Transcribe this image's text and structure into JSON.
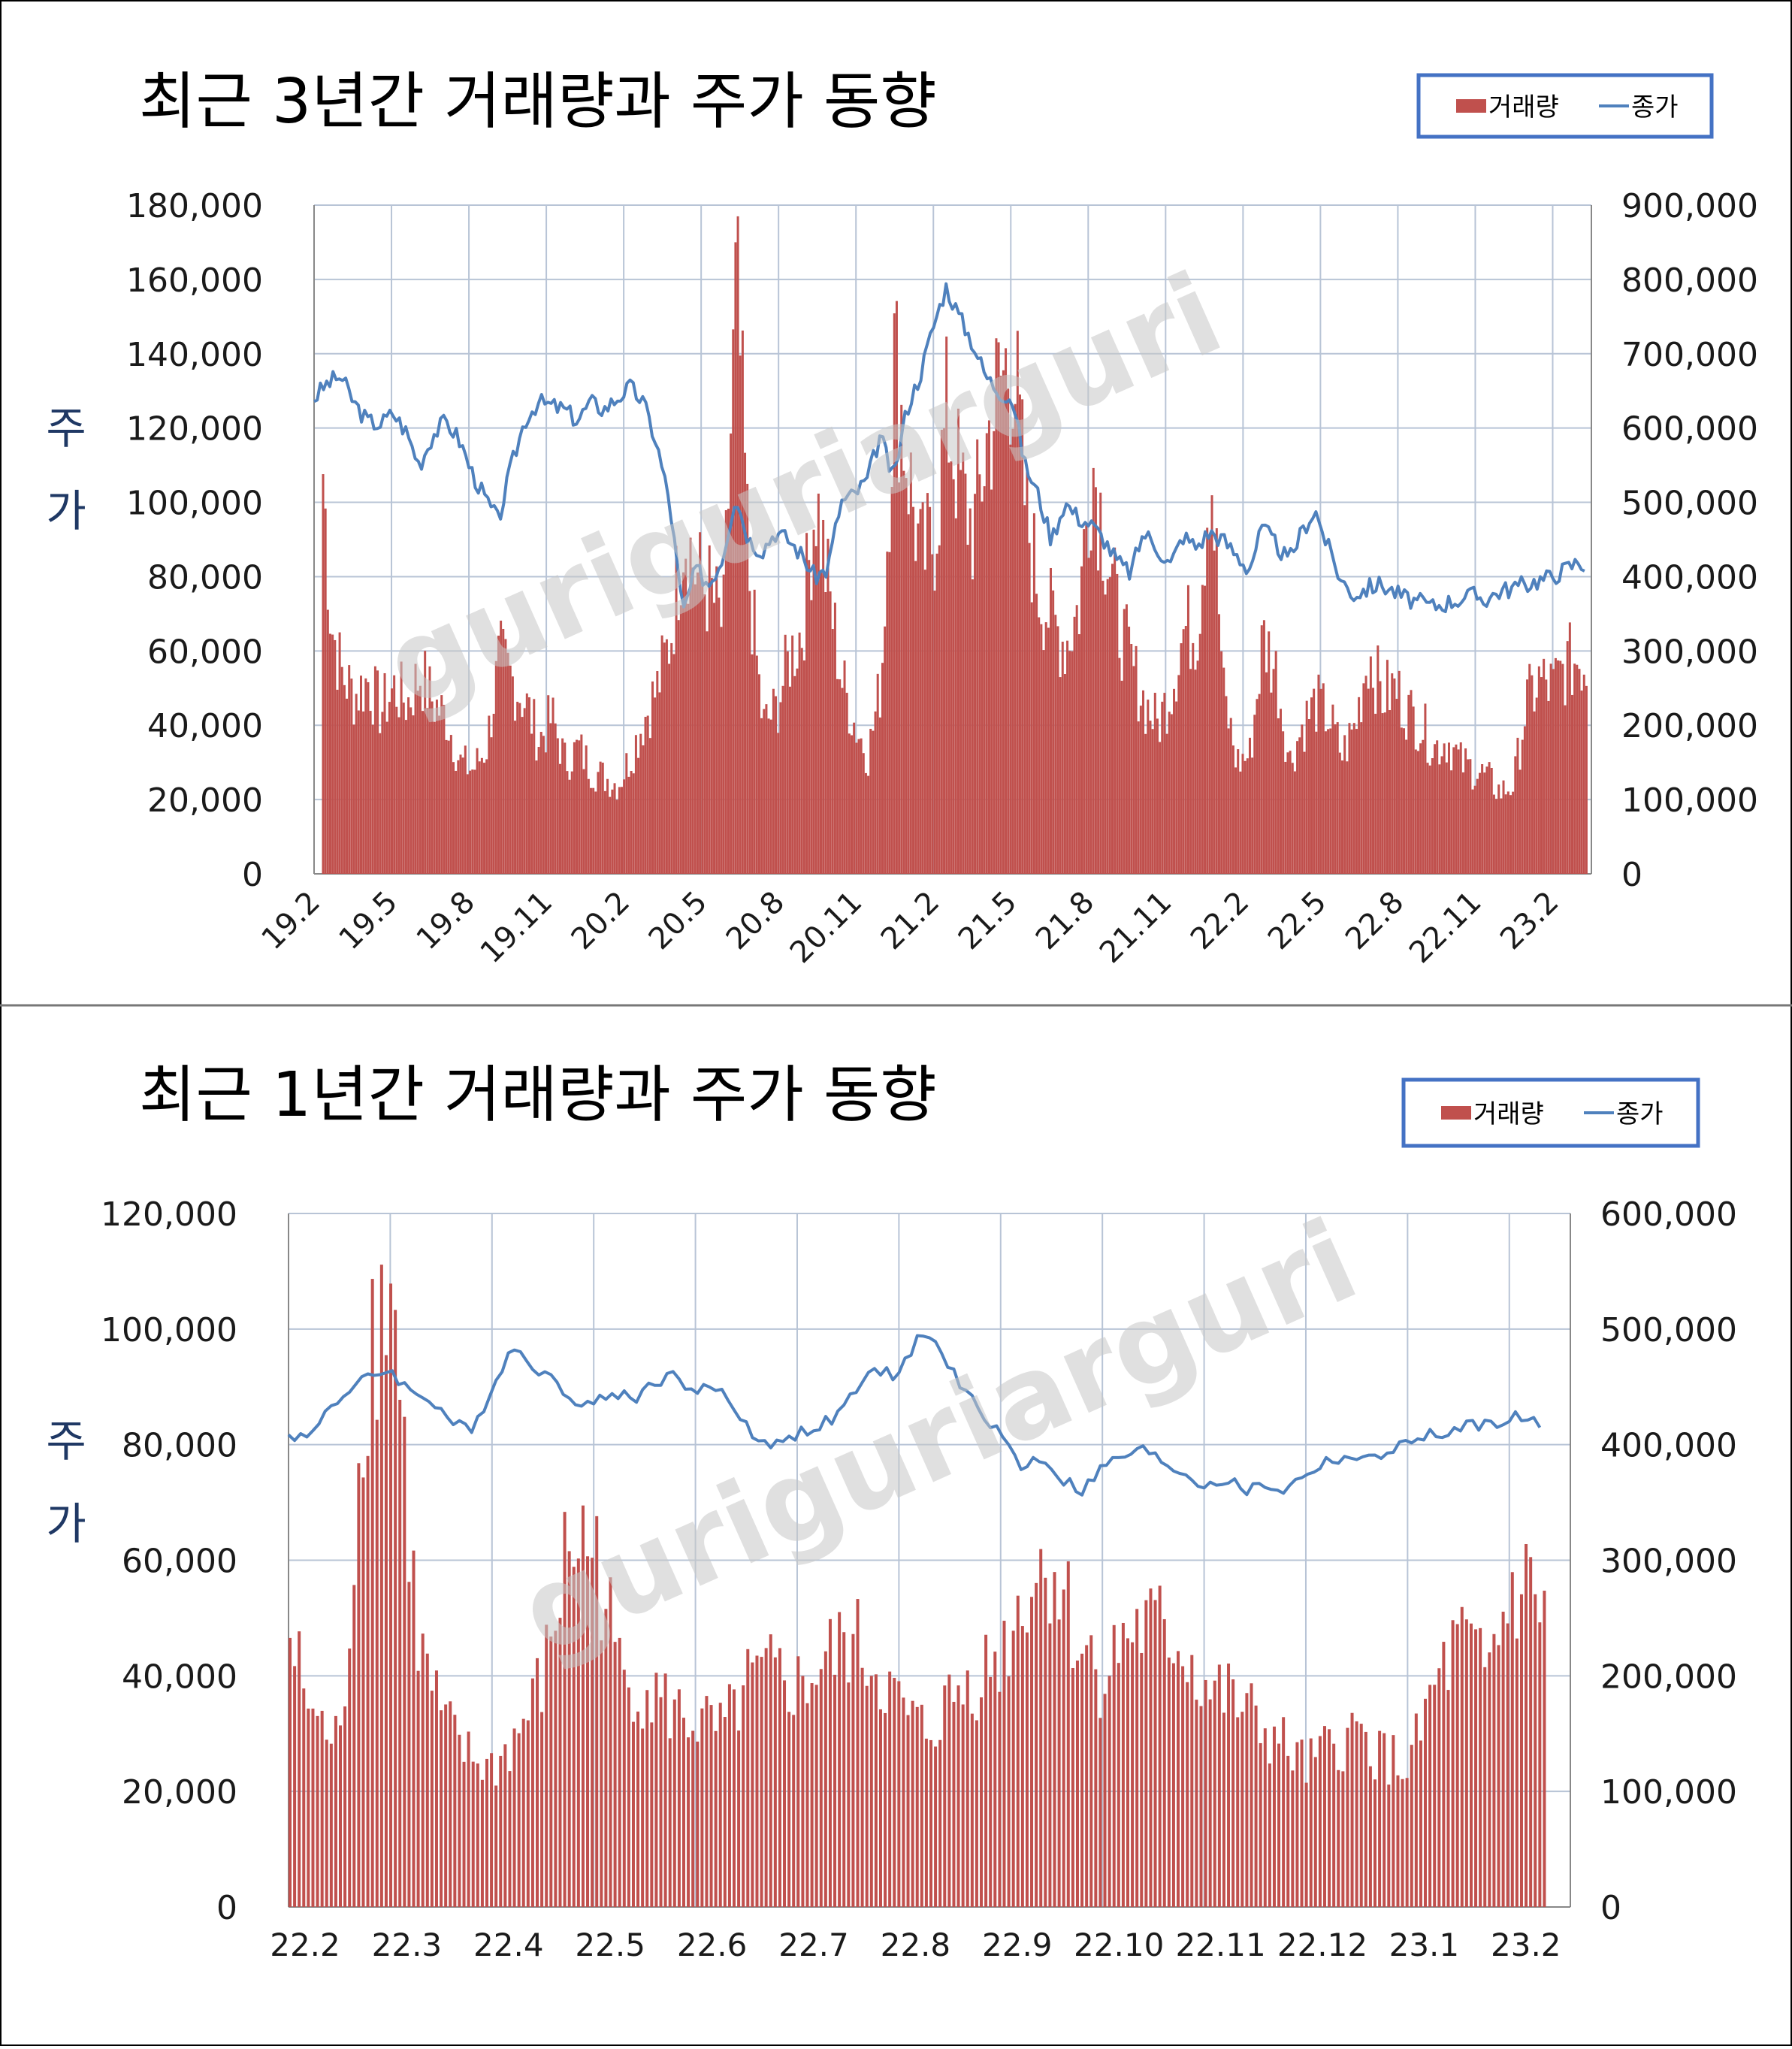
{
  "colors": {
    "volume": "#c0504d",
    "price": "#4f81bd",
    "grid": "#b8c4d6",
    "axis_text": "#1a1a1a",
    "ylabel": "#1f3864",
    "legend_border": "#4472c4",
    "watermark": "#c8c8c8",
    "frame": "#000000"
  },
  "watermark": "guriguriarguri",
  "chart_data": [
    {
      "type": "bar+line",
      "title": "최근 3년간 거래량과 주가 동향",
      "ylabel": "주\n가",
      "legend": {
        "position": "top-right",
        "items": [
          "거래량",
          "종가"
        ]
      },
      "x_ticks": [
        "19.2",
        "19.5",
        "19.8",
        "19.11",
        "20.2",
        "20.5",
        "20.8",
        "20.11",
        "21.2",
        "21.5",
        "21.8",
        "21.11",
        "22.2",
        "22.5",
        "22.8",
        "22.11",
        "23.2"
      ],
      "y_left": {
        "min": 0,
        "max": 180000,
        "step": 20000,
        "ticks": [
          "0",
          "20,000",
          "40,000",
          "60,000",
          "80,000",
          "100,000",
          "120,000",
          "140,000",
          "160,000",
          "180,000"
        ]
      },
      "y_right": {
        "min": 0,
        "max": 900000,
        "step": 100000,
        "ticks": [
          "0",
          "100,000",
          "200,000",
          "300,000",
          "400,000",
          "500,000",
          "600,000",
          "700,000",
          "800,000",
          "900,000"
        ]
      },
      "grid": true,
      "series": [
        {
          "name": "거래량",
          "axis": "right",
          "kind": "bar",
          "x_months": [
            0.3,
            0.6,
            1.0,
            1.5,
            2.0,
            2.5,
            3.0,
            3.5,
            4.0,
            4.5,
            5.0,
            5.5,
            6.0,
            6.5,
            7.0,
            7.5,
            8.0,
            8.5,
            9.0,
            9.5,
            10.0,
            10.5,
            11.0,
            11.5,
            12.0,
            12.5,
            13.0,
            13.5,
            14.0,
            14.5,
            15.0,
            15.5,
            16.0,
            16.5,
            17.0,
            17.5,
            18.0,
            18.5,
            19.0,
            19.5,
            20.0,
            20.5,
            21.0,
            21.5,
            22.0,
            22.5,
            23.0,
            23.5,
            24.0,
            24.5,
            25.0,
            25.5,
            26.0,
            26.5,
            27.0,
            27.5,
            28.0,
            28.5,
            29.0,
            29.5,
            30.0,
            30.5,
            31.0,
            31.5,
            32.0,
            32.5,
            33.0,
            33.5,
            34.0,
            34.5,
            35.0,
            35.5,
            36.0,
            36.5,
            37.0,
            37.5,
            38.0,
            38.5,
            39.0,
            39.5,
            40.0,
            40.5,
            41.0,
            41.5,
            42.0,
            42.5,
            43.0,
            43.5,
            44.0,
            44.5,
            45.0,
            45.5,
            46.0,
            46.5,
            47.0,
            47.5,
            48.0,
            48.3
          ],
          "values": [
            540000,
            340000,
            270000,
            240000,
            260000,
            220000,
            250000,
            230000,
            270000,
            230000,
            210000,
            150000,
            140000,
            170000,
            290000,
            260000,
            230000,
            180000,
            210000,
            150000,
            170000,
            140000,
            130000,
            120000,
            160000,
            210000,
            250000,
            320000,
            470000,
            400000,
            380000,
            330000,
            800000,
            390000,
            200000,
            220000,
            290000,
            330000,
            510000,
            380000,
            260000,
            200000,
            160000,
            260000,
            700000,
            550000,
            420000,
            450000,
            620000,
            520000,
            460000,
            580000,
            660000,
            700000,
            480000,
            380000,
            340000,
            310000,
            360000,
            560000,
            450000,
            340000,
            280000,
            230000,
            200000,
            250000,
            330000,
            330000,
            560000,
            240000,
            150000,
            160000,
            320000,
            270000,
            150000,
            200000,
            230000,
            210000,
            160000,
            200000,
            300000,
            240000,
            250000,
            220000,
            200000,
            170000,
            180000,
            150000,
            140000,
            130000,
            110000,
            120000,
            230000,
            260000,
            250000,
            280000,
            290000,
            280000
          ]
        },
        {
          "name": "종가",
          "axis": "left",
          "kind": "line",
          "x_months": [
            0,
            0.5,
            1,
            1.5,
            2,
            2.5,
            3,
            3.5,
            4,
            4.5,
            5,
            5.5,
            6,
            6.5,
            7,
            7.5,
            8,
            8.5,
            9,
            9.5,
            10,
            10.5,
            11,
            11.5,
            12,
            12.5,
            13,
            13.5,
            14,
            14.5,
            15,
            15.5,
            16,
            16.5,
            17,
            17.5,
            18,
            18.5,
            19,
            19.5,
            20,
            20.5,
            21,
            21.5,
            22,
            22.5,
            23,
            23.5,
            24,
            24.5,
            25,
            25.5,
            26,
            26.5,
            27,
            27.5,
            28,
            28.5,
            29,
            29.5,
            30,
            30.5,
            31,
            31.5,
            32,
            32.5,
            33,
            33.5,
            34,
            34.5,
            35,
            35.5,
            36,
            36.5,
            37,
            37.5,
            38,
            38.5,
            39,
            39.5,
            40,
            40.5,
            41,
            41.5,
            42,
            42.5,
            43,
            43.5,
            44,
            44.5,
            45,
            45.5,
            46,
            46.5,
            47,
            47.5,
            48,
            48.3
          ],
          "values": [
            128000,
            132000,
            134000,
            127000,
            122000,
            121000,
            124000,
            119000,
            110000,
            118000,
            122000,
            117000,
            108000,
            101000,
            95000,
            110000,
            122000,
            127000,
            126000,
            125000,
            122000,
            127000,
            125000,
            128000,
            131000,
            127000,
            116000,
            100000,
            70000,
            82000,
            78000,
            85000,
            102000,
            90000,
            87000,
            92000,
            90000,
            86000,
            80000,
            82000,
            100000,
            102000,
            106000,
            118000,
            106000,
            125000,
            134000,
            147000,
            158000,
            150000,
            143000,
            134000,
            130000,
            128000,
            110000,
            102000,
            90000,
            100000,
            96000,
            94000,
            90000,
            84000,
            81000,
            92000,
            88000,
            83000,
            91000,
            88000,
            92000,
            90000,
            86000,
            82000,
            93000,
            89000,
            84000,
            92000,
            98000,
            88000,
            79000,
            75000,
            77000,
            78000,
            76000,
            74000,
            73000,
            72000,
            73000,
            74000,
            75000,
            74000,
            76000,
            77000,
            78000,
            79000,
            80000,
            82000,
            84000,
            83000
          ]
        }
      ]
    },
    {
      "type": "bar+line",
      "title": "최근 1년간 거래량과 주가 동향",
      "ylabel": "주\n가",
      "legend": {
        "position": "top-right",
        "items": [
          "거래량",
          "종가"
        ]
      },
      "x_ticks": [
        "22.2",
        "22.3",
        "22.4",
        "22.5",
        "22.6",
        "22.7",
        "22.8",
        "22.9",
        "22.10",
        "22.11",
        "22.12",
        "23.1",
        "23.2"
      ],
      "y_left": {
        "min": 0,
        "max": 120000,
        "step": 20000,
        "ticks": [
          "0",
          "20,000",
          "40,000",
          "60,000",
          "80,000",
          "100,000",
          "120,000"
        ]
      },
      "y_right": {
        "min": 0,
        "max": 600000,
        "step": 100000,
        "ticks": [
          "0",
          "100,000",
          "200,000",
          "300,000",
          "400,000",
          "500,000",
          "600,000"
        ]
      },
      "grid": true,
      "series": [
        {
          "name": "거래량",
          "axis": "right",
          "kind": "bar",
          "x_months": [
            0.0,
            0.25,
            0.5,
            0.75,
            1.0,
            1.25,
            1.5,
            1.75,
            2.0,
            2.25,
            2.5,
            2.75,
            3.0,
            3.25,
            3.5,
            3.75,
            4.0,
            4.25,
            4.5,
            4.75,
            5.0,
            5.25,
            5.5,
            5.75,
            6.0,
            6.25,
            6.5,
            6.75,
            7.0,
            7.25,
            7.5,
            7.75,
            8.0,
            8.25,
            8.5,
            8.75,
            9.0,
            9.25,
            9.5,
            9.75,
            10.0,
            10.25,
            10.5,
            10.75,
            11.0,
            11.25,
            11.5,
            11.75,
            12.0,
            12.25,
            12.35
          ],
          "values": [
            230000,
            160000,
            140000,
            480000,
            550000,
            230000,
            160000,
            130000,
            120000,
            150000,
            200000,
            320000,
            310000,
            200000,
            190000,
            170000,
            160000,
            150000,
            190000,
            200000,
            190000,
            210000,
            230000,
            210000,
            170000,
            150000,
            180000,
            200000,
            220000,
            280000,
            300000,
            230000,
            200000,
            240000,
            240000,
            230000,
            190000,
            180000,
            160000,
            140000,
            120000,
            140000,
            150000,
            130000,
            120000,
            190000,
            230000,
            200000,
            270000,
            280000,
            240000
          ]
        },
        {
          "name": "종가",
          "axis": "left",
          "kind": "line",
          "x_months": [
            0.0,
            0.2,
            0.4,
            0.6,
            0.8,
            1.0,
            1.2,
            1.4,
            1.6,
            1.8,
            2.0,
            2.2,
            2.4,
            2.6,
            2.8,
            3.0,
            3.2,
            3.4,
            3.6,
            3.8,
            4.0,
            4.2,
            4.4,
            4.6,
            4.8,
            5.0,
            5.2,
            5.4,
            5.6,
            5.8,
            6.0,
            6.2,
            6.4,
            6.6,
            6.8,
            7.0,
            7.2,
            7.4,
            7.6,
            7.8,
            8.0,
            8.2,
            8.4,
            8.6,
            8.8,
            9.0,
            9.2,
            9.4,
            9.6,
            9.8,
            10.0,
            10.2,
            10.4,
            10.6,
            10.8,
            11.0,
            11.2,
            11.4,
            11.6,
            11.8,
            12.0,
            12.2,
            12.35
          ],
          "values": [
            82000,
            81000,
            87000,
            89000,
            92000,
            93000,
            89000,
            88000,
            84000,
            82000,
            90000,
            97000,
            94000,
            91000,
            88000,
            87000,
            89000,
            88000,
            91000,
            92000,
            89000,
            90000,
            86000,
            81000,
            80000,
            82000,
            83000,
            85000,
            90000,
            93000,
            92000,
            99000,
            97000,
            90000,
            86000,
            82000,
            76000,
            78000,
            74000,
            72000,
            76000,
            78000,
            79000,
            77000,
            75000,
            73000,
            74000,
            72000,
            73000,
            72000,
            75000,
            77000,
            78000,
            77000,
            79000,
            80000,
            82000,
            81000,
            84000,
            83000,
            85000,
            84000,
            83000
          ]
        }
      ]
    }
  ]
}
